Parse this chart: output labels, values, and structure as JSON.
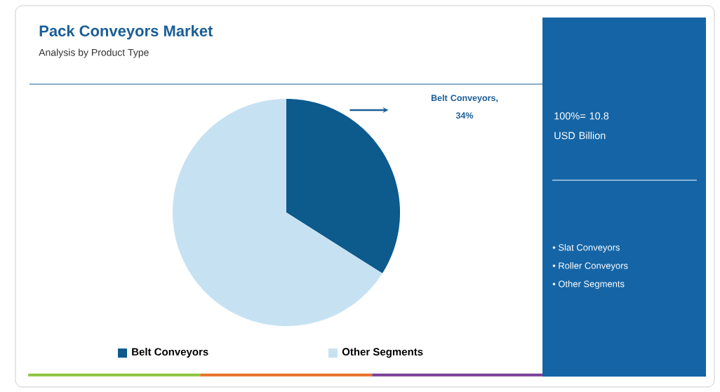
{
  "chart_data": {
    "type": "pie",
    "title": "Pack Conveyors Market",
    "subtitle": "Analysis by Product Type",
    "categories": [
      "Belt Conveyors",
      "Other Segments"
    ],
    "values": [
      34,
      66
    ],
    "colors": [
      "#0d5a8c",
      "#c6e2f2"
    ],
    "legend": "bottom",
    "annotations": [
      "Belt Conveyors, 34%",
      "100%= 10.8 USD Billion",
      "• Slat Conveyors",
      "• Roller Conveyors",
      "• Other Segments"
    ]
  }
}
